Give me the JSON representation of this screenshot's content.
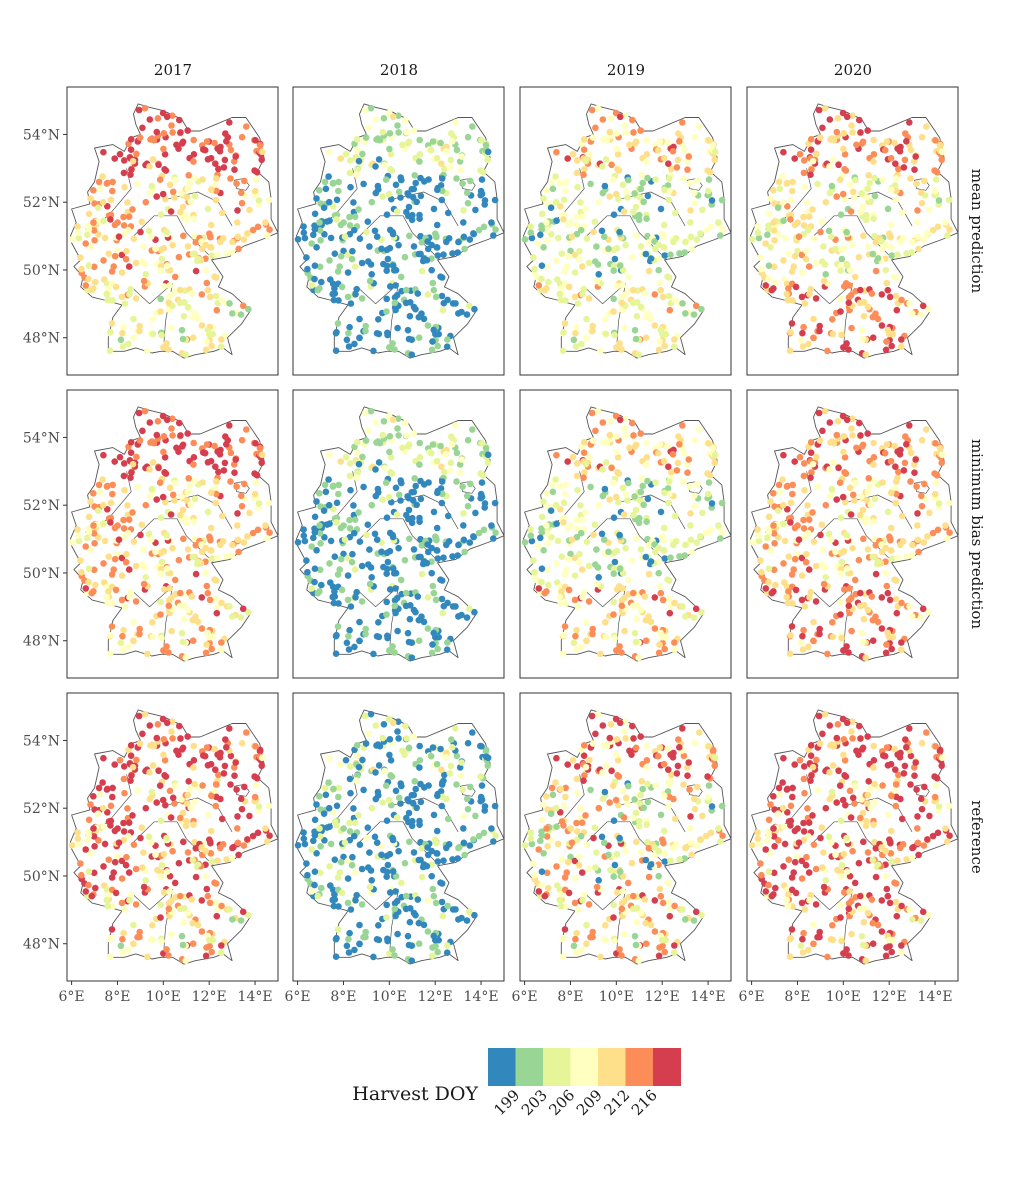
{
  "figure": {
    "column_titles": [
      "2017",
      "2018",
      "2019",
      "2020"
    ],
    "row_titles": [
      "mean prediction",
      "minimum bias prediction",
      "reference"
    ]
  },
  "axes": {
    "x_tick_labels": [
      "6°E",
      "8°E",
      "10°E",
      "12°E",
      "14°E"
    ],
    "y_tick_labels": [
      "48°N",
      "50°N",
      "52°N",
      "54°N"
    ],
    "lon_range": [
      5.8,
      15.0
    ],
    "lat_range": [
      46.9,
      55.4
    ]
  },
  "legend": {
    "title": "Harvest DOY",
    "breaks": [
      "199",
      "203",
      "206",
      "209",
      "212",
      "216"
    ],
    "colors": [
      "#3288bd",
      "#99d594",
      "#e6f598",
      "#ffffbf",
      "#fee08b",
      "#fc8d59",
      "#d53e4f"
    ]
  },
  "chart_data": {
    "type": "scatter",
    "description_fields": [
      "year",
      "row",
      "dominant color class"
    ],
    "panels": [
      {
        "row": "mean prediction",
        "year": "2017",
        "north_class": 6,
        "central_class": 4,
        "south_class": 3
      },
      {
        "row": "mean prediction",
        "year": "2018",
        "north_class": 2,
        "central_class": 0,
        "south_class": 0
      },
      {
        "row": "mean prediction",
        "year": "2019",
        "north_class": 4,
        "central_class": 2,
        "south_class": 3
      },
      {
        "row": "mean prediction",
        "year": "2020",
        "north_class": 5,
        "central_class": 3,
        "south_class": 5
      },
      {
        "row": "minimum bias prediction",
        "year": "2017",
        "north_class": 6,
        "central_class": 4,
        "south_class": 4
      },
      {
        "row": "minimum bias prediction",
        "year": "2018",
        "north_class": 2,
        "central_class": 0,
        "south_class": 0
      },
      {
        "row": "minimum bias prediction",
        "year": "2019",
        "north_class": 4,
        "central_class": 2,
        "south_class": 4
      },
      {
        "row": "minimum bias prediction",
        "year": "2020",
        "north_class": 5,
        "central_class": 4,
        "south_class": 5
      },
      {
        "row": "reference",
        "year": "2017",
        "north_class": 6,
        "central_class": 5,
        "south_class": 4
      },
      {
        "row": "reference",
        "year": "2018",
        "north_class": 1,
        "central_class": 0,
        "south_class": 0
      },
      {
        "row": "reference",
        "year": "2019",
        "north_class": 5,
        "central_class": 3,
        "south_class": 4
      },
      {
        "row": "reference",
        "year": "2020",
        "north_class": 6,
        "central_class": 5,
        "south_class": 5
      }
    ]
  }
}
